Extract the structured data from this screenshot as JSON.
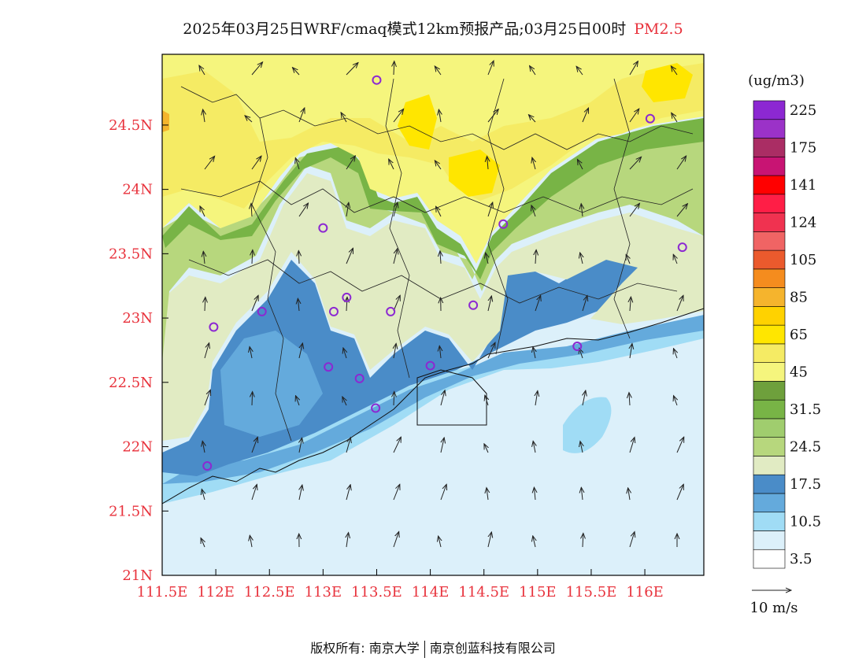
{
  "title": {
    "main": "2025年03月25日WRF/cmaq模式12km预报产品;03月25日00时",
    "pollutant": "PM2.5"
  },
  "axes": {
    "lon_labels": [
      "111.5E",
      "112E",
      "112.5E",
      "113E",
      "113.5E",
      "114E",
      "114.5E",
      "115E",
      "115.5E",
      "116E"
    ],
    "lon_values": [
      111.5,
      112,
      112.5,
      113,
      113.5,
      114,
      114.5,
      115,
      115.5,
      116
    ],
    "lat_labels": [
      "24.5N",
      "24N",
      "23.5N",
      "23N",
      "22.5N",
      "22N",
      "21.5N",
      "21N"
    ],
    "lat_values": [
      24.5,
      24,
      23.5,
      23,
      22.5,
      22,
      21.5,
      21
    ],
    "lon_range": [
      111.5,
      116.55
    ],
    "lat_range": [
      21,
      25.05
    ]
  },
  "colorbar": {
    "unit": "(ug/m3)",
    "colors": [
      "#ffffff",
      "#dcf0fa",
      "#a0dcf5",
      "#64aadc",
      "#4a8cc8",
      "#e1ebc3",
      "#b7d77d",
      "#a0cd6e",
      "#78b446",
      "#6ea03c",
      "#f5f57d",
      "#f5eb64",
      "#ffe600",
      "#ffd200",
      "#f5b42d",
      "#f58c1e",
      "#eb5a2d",
      "#f06464",
      "#f03250",
      "#ff1e46",
      "#ff0000",
      "#c81473",
      "#aa2d64",
      "#9b32c8",
      "#8c28d2"
    ],
    "labels": [
      "3.5",
      "10.5",
      "17.5",
      "24.5",
      "31.5",
      "45",
      "65",
      "85",
      "105",
      "124",
      "141",
      "175",
      "225"
    ],
    "label_rows": [
      1,
      3,
      5,
      7,
      9,
      11,
      13,
      15,
      17,
      19,
      21,
      23,
      25
    ]
  },
  "wind_scale": {
    "label": "10 m/s"
  },
  "sites": [
    [
      113.5,
      24.85
    ],
    [
      116.05,
      24.55
    ],
    [
      113.0,
      23.7
    ],
    [
      114.68,
      23.73
    ],
    [
      116.35,
      23.55
    ],
    [
      113.22,
      23.16
    ],
    [
      112.43,
      23.05
    ],
    [
      113.1,
      23.05
    ],
    [
      113.63,
      23.05
    ],
    [
      114.4,
      23.1
    ],
    [
      111.98,
      22.93
    ],
    [
      115.37,
      22.78
    ],
    [
      113.05,
      22.62
    ],
    [
      113.34,
      22.53
    ],
    [
      114.0,
      22.63
    ],
    [
      113.49,
      22.3
    ],
    [
      111.92,
      21.85
    ]
  ],
  "credit": {
    "left": "版权所有: 南京大学",
    "right": "南京创蓝科技有限公司"
  }
}
